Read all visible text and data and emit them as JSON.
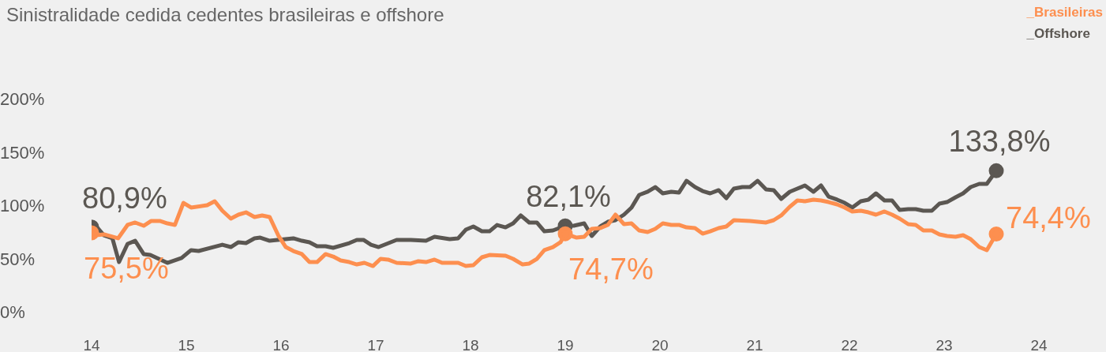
{
  "chart_data": {
    "type": "line",
    "title": "Sinistralidade cedida cedentes brasileiras e offshore",
    "legend": "top right",
    "grid": false,
    "xlim": [
      14,
      24
    ],
    "xticks": [
      14,
      15,
      16,
      17,
      18,
      19,
      20,
      21,
      22,
      23,
      24
    ],
    "ylim": [
      0,
      200
    ],
    "yticks": [
      {
        "value": 0,
        "label": "0%"
      },
      {
        "value": 50,
        "label": "50%"
      },
      {
        "value": 100,
        "label": "100%"
      },
      {
        "value": 150,
        "label": "150%"
      },
      {
        "value": 200,
        "label": "200%"
      }
    ],
    "series": [
      {
        "name": "_Brasileiras",
        "color": "#fd8f4f",
        "x": [
          14,
          14.05,
          14.13,
          14.28,
          14.38,
          14.46,
          14.55,
          14.63,
          14.72,
          14.8,
          14.88,
          14.97,
          15.05,
          15.22,
          15.3,
          15.38,
          15.47,
          15.55,
          15.63,
          15.72,
          15.8,
          15.88,
          15.97,
          16.05,
          16.13,
          16.22,
          16.3,
          16.38,
          16.47,
          16.55,
          16.63,
          16.72,
          16.8,
          16.88,
          16.97,
          17.05,
          17.13,
          17.22,
          17.37,
          17.45,
          17.53,
          17.62,
          17.7,
          17.87,
          17.95,
          18.03,
          18.12,
          18.2,
          18.37,
          18.45,
          18.55,
          18.62,
          18.7,
          18.78,
          18.87,
          18.95,
          19,
          19.12,
          19.2,
          19.28,
          19.37,
          19.45,
          19.53,
          19.62,
          19.7,
          19.78,
          19.87,
          19.95,
          20.03,
          20.12,
          20.2,
          20.28,
          20.37,
          20.45,
          20.53,
          20.62,
          20.7,
          20.78,
          20.95,
          21.12,
          21.2,
          21.28,
          21.37,
          21.45,
          21.53,
          21.62,
          21.7,
          21.78,
          21.87,
          21.95,
          22.03,
          22.12,
          22.2,
          22.28,
          22.37,
          22.45,
          22.53,
          22.62,
          22.7,
          22.78,
          22.87,
          22.95,
          23.03,
          23.12,
          23.2,
          23.28,
          23.37,
          23.45,
          23.55
        ],
        "values": [
          75.5,
          73.3,
          74.1,
          70.4,
          83,
          85.2,
          82.2,
          86.7,
          86.7,
          84.4,
          83,
          103.7,
          99.3,
          101.5,
          105.2,
          96.3,
          88.9,
          92.6,
          94.8,
          90.4,
          91.9,
          90.4,
          73.3,
          62.2,
          58.5,
          55.6,
          48.1,
          48.1,
          55.6,
          53.3,
          49.6,
          48.1,
          45.9,
          47.4,
          44.4,
          51.1,
          50.4,
          47.4,
          46.7,
          48.9,
          48.1,
          50.4,
          47.4,
          47.4,
          44.4,
          45.2,
          52.6,
          54.8,
          54.1,
          51.1,
          45.9,
          46.7,
          51.1,
          59.3,
          62.2,
          66.7,
          74.7,
          71.1,
          71.9,
          79.3,
          80,
          83,
          92.6,
          83.7,
          84.4,
          77.8,
          76.3,
          79.3,
          84.4,
          83,
          83,
          80.7,
          80,
          74.8,
          77,
          80,
          81.5,
          87.4,
          86.7,
          85.2,
          87.4,
          91.9,
          100,
          105.9,
          105.2,
          106.7,
          105.9,
          104.4,
          102.2,
          99.3,
          95.6,
          96.3,
          94.8,
          92.6,
          95.6,
          92.6,
          88.9,
          83.7,
          83,
          77.8,
          77.8,
          74.1,
          72.6,
          71.9,
          73.3,
          69.6,
          62.2,
          59.3,
          74.4
        ],
        "value_labels": [
          "75,5%",
          null,
          null,
          null,
          null,
          null,
          null,
          null,
          null,
          null,
          null,
          null,
          null,
          null,
          null,
          null,
          null,
          null,
          null,
          null,
          null,
          null,
          null,
          null,
          null,
          null,
          null,
          null,
          null,
          null,
          null,
          null,
          null,
          null,
          null,
          null,
          null,
          null,
          null,
          null,
          null,
          null,
          null,
          null,
          null,
          null,
          null,
          null,
          null,
          null,
          null,
          null,
          null,
          null,
          null,
          null,
          "74,7%",
          null,
          null,
          null,
          null,
          null,
          null,
          null,
          null,
          null,
          null,
          null,
          null,
          null,
          null,
          null,
          null,
          null,
          null,
          null,
          null,
          null,
          null,
          null,
          null,
          null,
          null,
          null,
          null,
          null,
          null,
          null,
          null,
          null,
          null,
          null,
          null,
          null,
          null,
          null,
          null,
          null,
          null,
          null,
          null,
          null,
          null,
          null,
          null,
          null,
          null,
          null,
          "74,4%"
        ]
      },
      {
        "name": "_Offshore",
        "color": "#5b5752",
        "x": [
          14,
          14.05,
          14.13,
          14.22,
          14.29,
          14.38,
          14.46,
          14.55,
          14.62,
          14.8,
          14.95,
          15.05,
          15.13,
          15.38,
          15.47,
          15.55,
          15.63,
          15.72,
          15.78,
          15.88,
          16.13,
          16.22,
          16.3,
          16.38,
          16.47,
          16.55,
          16.72,
          16.8,
          16.87,
          16.95,
          17.03,
          17.22,
          17.37,
          17.53,
          17.62,
          17.78,
          17.87,
          17.95,
          18.03,
          18.12,
          18.2,
          18.28,
          18.37,
          18.45,
          18.53,
          18.62,
          18.7,
          18.78,
          18.87,
          19,
          19.09,
          19.2,
          19.28,
          19.37,
          19.45,
          19.53,
          19.62,
          19.7,
          19.78,
          19.87,
          19.95,
          20.03,
          20.12,
          20.2,
          20.28,
          20.37,
          20.45,
          20.53,
          20.62,
          20.7,
          20.78,
          20.87,
          20.95,
          21.03,
          21.12,
          21.2,
          21.28,
          21.37,
          21.45,
          21.53,
          21.62,
          21.7,
          21.78,
          21.87,
          21.95,
          22.03,
          22.12,
          22.2,
          22.28,
          22.37,
          22.45,
          22.53,
          22.62,
          22.7,
          22.78,
          22.87,
          22.95,
          23.03,
          23.12,
          23.2,
          23.28,
          23.37,
          23.45,
          23.55
        ],
        "values": [
          80.9,
          81.5,
          73.3,
          70.4,
          48.1,
          65.2,
          68.1,
          55.6,
          54.8,
          47.4,
          51.9,
          59.3,
          58.5,
          64.4,
          62.2,
          66.7,
          65.9,
          70.4,
          71.1,
          68.1,
          70.4,
          68.1,
          66.7,
          63,
          63,
          61.5,
          65.9,
          68.9,
          68.9,
          64.4,
          62.2,
          68.9,
          68.9,
          68.1,
          71.9,
          69.6,
          70.4,
          78.5,
          81.5,
          77,
          77,
          82.9,
          80.7,
          84.4,
          91.9,
          85.2,
          85.2,
          77,
          77.8,
          82.1,
          82.2,
          84.4,
          72.6,
          81.5,
          85.9,
          87.4,
          92.6,
          99.3,
          111.1,
          114.1,
          118.5,
          112.6,
          114.1,
          113.3,
          124.4,
          118.5,
          114.8,
          112.6,
          115.6,
          108.1,
          117,
          118.5,
          118.5,
          124.4,
          116.3,
          115.6,
          107.4,
          114.1,
          117,
          120,
          114.1,
          120,
          109.6,
          106.7,
          103.7,
          99.3,
          105.2,
          106.7,
          112.6,
          105.9,
          105.9,
          97,
          97.8,
          97.8,
          96.3,
          96.3,
          103,
          104.4,
          108.9,
          112.6,
          118.5,
          121.5,
          121.5,
          133.8
        ],
        "value_labels": [
          "80,9%",
          null,
          null,
          null,
          null,
          null,
          null,
          null,
          null,
          null,
          null,
          null,
          null,
          null,
          null,
          null,
          null,
          null,
          null,
          null,
          null,
          null,
          null,
          null,
          null,
          null,
          null,
          null,
          null,
          null,
          null,
          null,
          null,
          null,
          null,
          null,
          null,
          null,
          null,
          null,
          null,
          null,
          null,
          null,
          null,
          null,
          null,
          null,
          null,
          "82,1%",
          null,
          null,
          null,
          null,
          null,
          null,
          null,
          null,
          null,
          null,
          null,
          null,
          null,
          null,
          null,
          null,
          null,
          null,
          null,
          null,
          null,
          null,
          null,
          null,
          null,
          null,
          null,
          null,
          null,
          null,
          null,
          null,
          null,
          null,
          null,
          null,
          null,
          null,
          null,
          null,
          null,
          null,
          null,
          null,
          null,
          null,
          null,
          null,
          null,
          null,
          null,
          null,
          null,
          "133,8%"
        ]
      }
    ]
  }
}
